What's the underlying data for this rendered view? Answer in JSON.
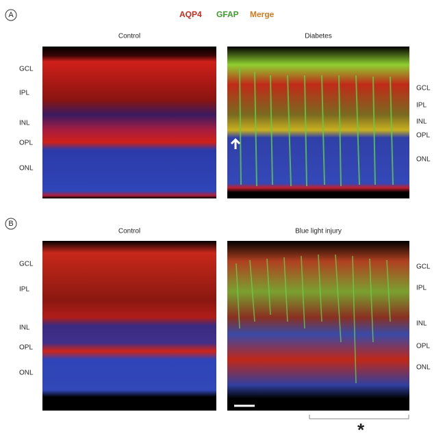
{
  "legend": [
    "AQP4",
    "GFAP",
    "Merge"
  ],
  "panels": [
    {
      "letter": "A",
      "images": [
        {
          "title": "Control",
          "layers": [
            "GCL",
            "IPL",
            "INL",
            "OPL",
            "ONL"
          ]
        },
        {
          "title": "Diabetes",
          "layers": [
            "GCL",
            "IPL",
            "INL",
            "OPL",
            "ONL"
          ]
        }
      ]
    },
    {
      "letter": "B",
      "images": [
        {
          "title": "Control",
          "layers": [
            "GCL",
            "IPL",
            "INL",
            "OPL",
            "ONL"
          ]
        },
        {
          "title": "Blue light injury",
          "layers": [
            "GCL",
            "IPL",
            "INL",
            "OPL",
            "ONL"
          ]
        }
      ]
    }
  ],
  "asterisk": "*"
}
